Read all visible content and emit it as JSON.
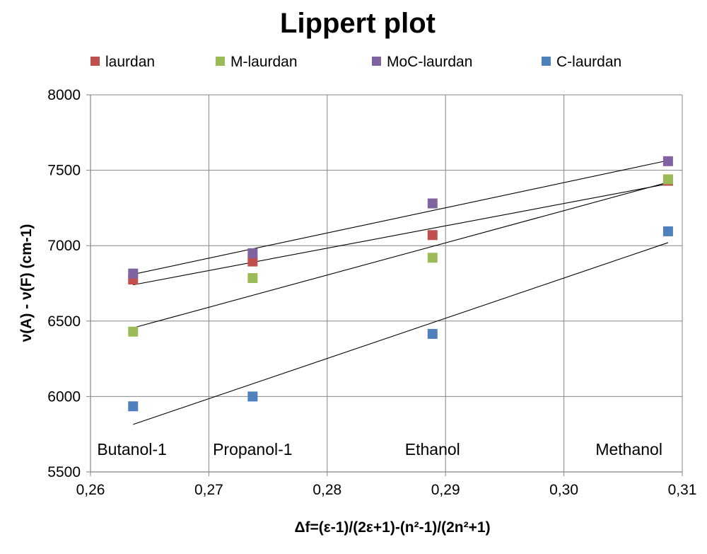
{
  "chart_data": {
    "type": "scatter",
    "title": "Lippert plot",
    "xlabel": "Δf=(ε-1)/(2ε+1)-(n²-1)/(2n²+1)",
    "ylabel": "ν(A) - ν(F) (cm-1)",
    "xlim": [
      0.26,
      0.31
    ],
    "ylim": [
      5500,
      8000
    ],
    "x_ticks": [
      "0,26",
      "0,27",
      "0,28",
      "0,29",
      "0,30",
      "0,31"
    ],
    "y_ticks": [
      "5500",
      "6000",
      "6500",
      "7000",
      "7500",
      "8000"
    ],
    "grid": {
      "vertical": true,
      "horizontal": true
    },
    "legend_position": "top",
    "annotations": [
      {
        "text": "Butanol-1",
        "x": 0.2635,
        "y": 5650
      },
      {
        "text": "Propanol-1",
        "x": 0.2737,
        "y": 5650
      },
      {
        "text": "Ethanol",
        "x": 0.2889,
        "y": 5650
      },
      {
        "text": "Methanol",
        "x": 0.3055,
        "y": 5650
      }
    ],
    "series": [
      {
        "name": "laurdan",
        "color": "#c0504d",
        "points": [
          {
            "x": 0.2636,
            "y": 6775
          },
          {
            "x": 0.2737,
            "y": 6895
          },
          {
            "x": 0.2889,
            "y": 7070
          },
          {
            "x": 0.3088,
            "y": 7430
          }
        ],
        "trendline": {
          "x1": 0.2636,
          "y1": 6740,
          "x2": 0.3088,
          "y2": 7410
        }
      },
      {
        "name": "M-laurdan",
        "color": "#9bbb59",
        "points": [
          {
            "x": 0.2636,
            "y": 6430
          },
          {
            "x": 0.2737,
            "y": 6785
          },
          {
            "x": 0.2889,
            "y": 6920
          },
          {
            "x": 0.3088,
            "y": 7440
          }
        ],
        "trendline": {
          "x1": 0.2636,
          "y1": 6455,
          "x2": 0.3088,
          "y2": 7420
        }
      },
      {
        "name": "MoC-laurdan",
        "color": "#8064a2",
        "points": [
          {
            "x": 0.2636,
            "y": 6815
          },
          {
            "x": 0.2737,
            "y": 6950
          },
          {
            "x": 0.2889,
            "y": 7280
          },
          {
            "x": 0.3088,
            "y": 7560
          }
        ],
        "trendline": {
          "x1": 0.2636,
          "y1": 6810,
          "x2": 0.3088,
          "y2": 7565
        }
      },
      {
        "name": "C-laurdan",
        "color": "#4f81bd",
        "points": [
          {
            "x": 0.2636,
            "y": 5935
          },
          {
            "x": 0.2737,
            "y": 6000
          },
          {
            "x": 0.2889,
            "y": 6415
          },
          {
            "x": 0.3088,
            "y": 7095
          }
        ],
        "trendline": {
          "x1": 0.2636,
          "y1": 5815,
          "x2": 0.3088,
          "y2": 7020
        }
      }
    ]
  }
}
